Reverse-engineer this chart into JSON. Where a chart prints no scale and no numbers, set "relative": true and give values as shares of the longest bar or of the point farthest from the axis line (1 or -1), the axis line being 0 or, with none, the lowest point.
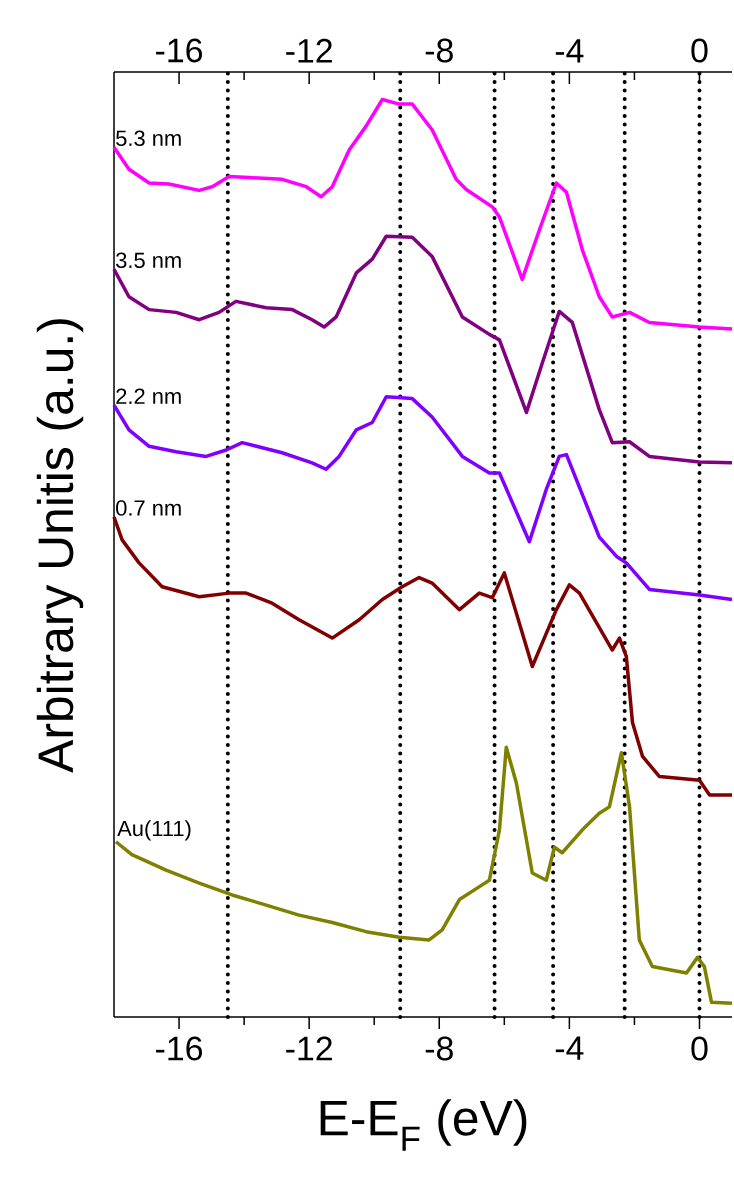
{
  "chart_data": {
    "type": "line",
    "relative": true,
    "xlabel": "E-E$_{F}$ (eV)",
    "ylabel": "Arbitrary Unitis (a.u.)",
    "xlim": [
      -18,
      1
    ],
    "xticks": [
      -16,
      -12,
      -8,
      -4,
      0
    ],
    "x2lim": [
      -18,
      1
    ],
    "x2ticks": [
      -16,
      -12,
      -8,
      -4,
      0
    ],
    "ref_lines": [
      {
        "axis": "x",
        "value": -14.5,
        "color": "#000000",
        "line_style": "dotted"
      },
      {
        "axis": "x",
        "value": -9.2,
        "color": "#000000",
        "line_style": "dotted"
      },
      {
        "axis": "x",
        "value": -6.3,
        "color": "#000000",
        "line_style": "dotted"
      },
      {
        "axis": "x",
        "value": -4.5,
        "color": "#000000",
        "line_style": "dotted"
      },
      {
        "axis": "x",
        "value": -2.3,
        "color": "#000000",
        "line_style": "dotted"
      },
      {
        "axis": "x",
        "value": 0,
        "color": "#000000",
        "line_style": "dotted"
      }
    ],
    "series": [
      {
        "name": "5.3 nm",
        "color": "#ff00ff",
        "x": [
          -18.0,
          -17.54,
          -16.92,
          -16.31,
          -15.38,
          -14.98,
          -14.46,
          -13.85,
          -12.83,
          -12.09,
          -11.63,
          -11.29,
          -10.77,
          -10.25,
          -9.75,
          -9.23,
          -8.83,
          -8.22,
          -7.48,
          -7.17,
          -6.37,
          -6.15,
          -5.45,
          -4.92,
          -4.4,
          -4.09,
          -3.6,
          -3.08,
          -2.68,
          -2.15,
          -1.54,
          0,
          1.0
        ],
        "values": [
          0.948,
          0.924,
          0.909,
          0.908,
          0.901,
          0.905,
          0.916,
          0.915,
          0.913,
          0.905,
          0.894,
          0.905,
          0.945,
          0.971,
          1.0,
          0.995,
          0.995,
          0.967,
          0.913,
          0.902,
          0.883,
          0.872,
          0.804,
          0.858,
          0.909,
          0.899,
          0.836,
          0.785,
          0.763,
          0.768,
          0.757,
          0.752,
          0.75
        ]
      },
      {
        "name": "3.5 nm",
        "color": "#800080",
        "x": [
          -18.0,
          -17.54,
          -16.92,
          -16.09,
          -15.38,
          -14.77,
          -14.25,
          -13.32,
          -12.52,
          -11.91,
          -11.54,
          -11.17,
          -10.55,
          -10.06,
          -9.63,
          -8.83,
          -8.22,
          -7.29,
          -6.46,
          -6.15,
          -5.32,
          -4.83,
          -4.31,
          -3.91,
          -3.08,
          -2.68,
          -2.15,
          -1.54,
          0,
          1.0
        ],
        "values": [
          0.815,
          0.785,
          0.771,
          0.768,
          0.76,
          0.768,
          0.78,
          0.773,
          0.771,
          0.76,
          0.752,
          0.763,
          0.811,
          0.826,
          0.851,
          0.85,
          0.829,
          0.763,
          0.744,
          0.738,
          0.659,
          0.713,
          0.769,
          0.757,
          0.662,
          0.626,
          0.627,
          0.611,
          0.605,
          0.604
        ]
      },
      {
        "name": "2.2 nm",
        "color": "#8000ff",
        "x": [
          -18.0,
          -17.54,
          -16.92,
          -16.09,
          -15.17,
          -14.55,
          -14.06,
          -12.83,
          -11.91,
          -11.48,
          -11.08,
          -10.55,
          -10.06,
          -9.63,
          -8.83,
          -8.22,
          -7.29,
          -6.46,
          -6.15,
          -5.23,
          -4.71,
          -4.31,
          -4.09,
          -3.08,
          -2.55,
          -2.25,
          -1.54,
          0,
          1.0
        ],
        "values": [
          0.667,
          0.64,
          0.622,
          0.616,
          0.611,
          0.618,
          0.626,
          0.615,
          0.604,
          0.597,
          0.611,
          0.64,
          0.648,
          0.676,
          0.674,
          0.654,
          0.611,
          0.593,
          0.593,
          0.518,
          0.575,
          0.611,
          0.613,
          0.523,
          0.502,
          0.495,
          0.466,
          0.46,
          0.455
        ]
      },
      {
        "name": "0.7 nm",
        "color": "#800000",
        "x": [
          -18.0,
          -17.75,
          -17.23,
          -16.52,
          -15.38,
          -14.46,
          -13.94,
          -13.14,
          -12.31,
          -11.29,
          -10.46,
          -9.75,
          -9.14,
          -8.62,
          -8.22,
          -7.38,
          -6.77,
          -6.37,
          -6.0,
          -5.14,
          -4.4,
          -4.0,
          -3.69,
          -2.68,
          -2.46,
          -2.25,
          -2.06,
          -1.75,
          -1.23,
          0,
          0.31,
          1.0
        ],
        "values": [
          0.545,
          0.52,
          0.495,
          0.469,
          0.458,
          0.462,
          0.462,
          0.451,
          0.433,
          0.413,
          0.433,
          0.455,
          0.469,
          0.479,
          0.473,
          0.444,
          0.462,
          0.457,
          0.484,
          0.382,
          0.444,
          0.471,
          0.462,
          0.4,
          0.413,
          0.393,
          0.321,
          0.284,
          0.262,
          0.258,
          0.242,
          0.242
        ]
      },
      {
        "name": "Au(111)",
        "color": "#808000",
        "x": [
          -17.94,
          -17.45,
          -16.4,
          -15.38,
          -14.37,
          -13.32,
          -12.31,
          -11.29,
          -10.25,
          -9.23,
          -8.31,
          -7.91,
          -7.38,
          -6.68,
          -6.46,
          -6.15,
          -5.94,
          -5.63,
          -5.14,
          -4.71,
          -4.46,
          -4.22,
          -3.6,
          -3.08,
          -2.77,
          -2.4,
          -2.15,
          -1.85,
          -1.45,
          -0.4,
          -0.06,
          0.15,
          0.37,
          1.0
        ],
        "values": [
          0.191,
          0.177,
          0.16,
          0.146,
          0.133,
          0.122,
          0.111,
          0.103,
          0.093,
          0.087,
          0.084,
          0.095,
          0.128,
          0.144,
          0.149,
          0.204,
          0.294,
          0.255,
          0.157,
          0.149,
          0.185,
          0.179,
          0.204,
          0.222,
          0.229,
          0.288,
          0.229,
          0.084,
          0.055,
          0.048,
          0.065,
          0.055,
          0.016,
          0.015
        ]
      }
    ]
  }
}
